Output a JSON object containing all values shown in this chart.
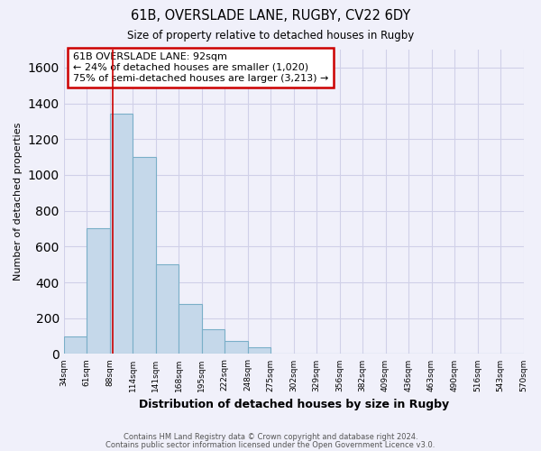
{
  "title": "61B, OVERSLADE LANE, RUGBY, CV22 6DY",
  "subtitle": "Size of property relative to detached houses in Rugby",
  "xlabel": "Distribution of detached houses by size in Rugby",
  "ylabel": "Number of detached properties",
  "footer_lines": [
    "Contains HM Land Registry data © Crown copyright and database right 2024.",
    "Contains public sector information licensed under the Open Government Licence v3.0."
  ],
  "bin_starts": [
    34,
    61,
    88,
    115,
    142,
    169,
    196,
    223,
    250,
    277,
    304,
    331,
    358,
    385,
    412,
    439,
    466,
    493,
    520,
    547
  ],
  "bin_width": 27,
  "bin_labels": [
    "34sqm",
    "61sqm",
    "88sqm",
    "114sqm",
    "141sqm",
    "168sqm",
    "195sqm",
    "222sqm",
    "248sqm",
    "275sqm",
    "302sqm",
    "329sqm",
    "356sqm",
    "382sqm",
    "409sqm",
    "436sqm",
    "463sqm",
    "490sqm",
    "516sqm",
    "543sqm",
    "570sqm"
  ],
  "bar_heights": [
    100,
    700,
    1340,
    1100,
    500,
    280,
    140,
    75,
    35,
    0,
    0,
    0,
    0,
    0,
    0,
    0,
    0,
    0,
    0,
    0
  ],
  "bar_color": "#c5d8ea",
  "bar_edge_color": "#7aafc8",
  "property_line_x": 92,
  "property_line_color": "#cc0000",
  "annotation_text_line1": "61B OVERSLADE LANE: 92sqm",
  "annotation_text_line2": "← 24% of detached houses are smaller (1,020)",
  "annotation_text_line3": "75% of semi-detached houses are larger (3,213) →",
  "annotation_box_color": "#cc0000",
  "ylim": [
    0,
    1700
  ],
  "yticks": [
    0,
    200,
    400,
    600,
    800,
    1000,
    1200,
    1400,
    1600
  ],
  "bg_color": "#f0f0fa",
  "grid_color": "#d0d0e8",
  "plot_bg_color": "#f0f0fa"
}
